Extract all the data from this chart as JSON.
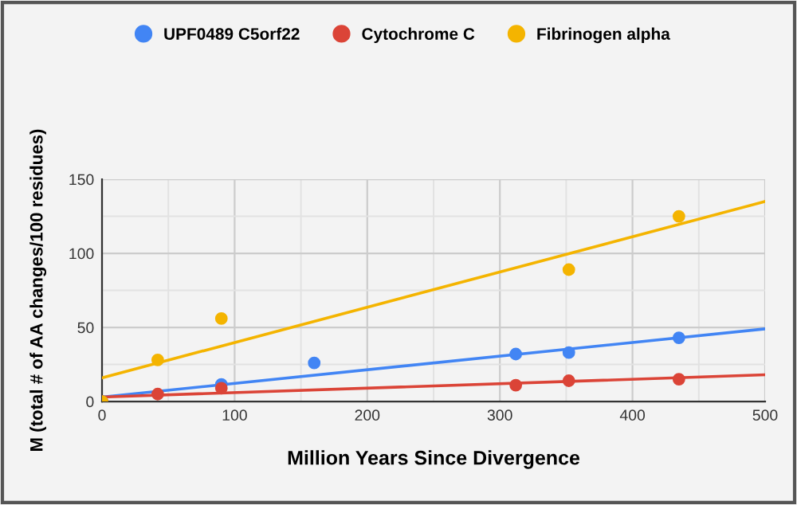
{
  "chart_data": {
    "type": "scatter",
    "xlabel": "Million Years Since Divergence",
    "ylabel": "M (total # of AA changes/100 residues)",
    "xlim": [
      0,
      500
    ],
    "ylim": [
      0,
      150
    ],
    "xticks": [
      0,
      {
        "value": 50,
        "label": null
      },
      100,
      {
        "value": 150,
        "label": null
      },
      200,
      {
        "value": 250,
        "label": null
      },
      300,
      {
        "value": 350,
        "label": null
      },
      400,
      {
        "value": 450,
        "label": null
      },
      500
    ],
    "yticks": [
      0,
      {
        "value": 25,
        "label": null
      },
      50,
      {
        "value": 75,
        "label": null
      },
      100,
      {
        "value": 125,
        "label": null
      },
      150
    ],
    "grid": true,
    "legend": "top",
    "marker": "circle",
    "series": [
      {
        "name": "UPF0489 C5orf22",
        "color": "#4285f4",
        "x": [
          0,
          90,
          160,
          312,
          352,
          435
        ],
        "values": [
          0,
          11.5,
          26,
          32,
          33,
          43
        ]
      },
      {
        "name": "Cytochrome C",
        "color": "#db4437",
        "x": [
          0,
          42,
          90,
          312,
          352,
          435
        ],
        "values": [
          0,
          5,
          9,
          11,
          14,
          15
        ]
      },
      {
        "name": "Fibrinogen alpha",
        "color": "#f4b400",
        "x": [
          0,
          42,
          90,
          352,
          435
        ],
        "values": [
          0,
          28,
          56,
          89,
          125
        ]
      },
      {
        "type": "line",
        "marker": "none",
        "color": "#4285f4",
        "x": [
          0,
          500
        ],
        "values": [
          3,
          49
        ]
      },
      {
        "type": "line",
        "marker": "none",
        "color": "#db4437",
        "x": [
          0,
          500
        ],
        "values": [
          3,
          18
        ]
      },
      {
        "type": "line",
        "marker": "none",
        "color": "#f4b400",
        "x": [
          0,
          500
        ],
        "values": [
          16,
          135
        ]
      }
    ]
  }
}
